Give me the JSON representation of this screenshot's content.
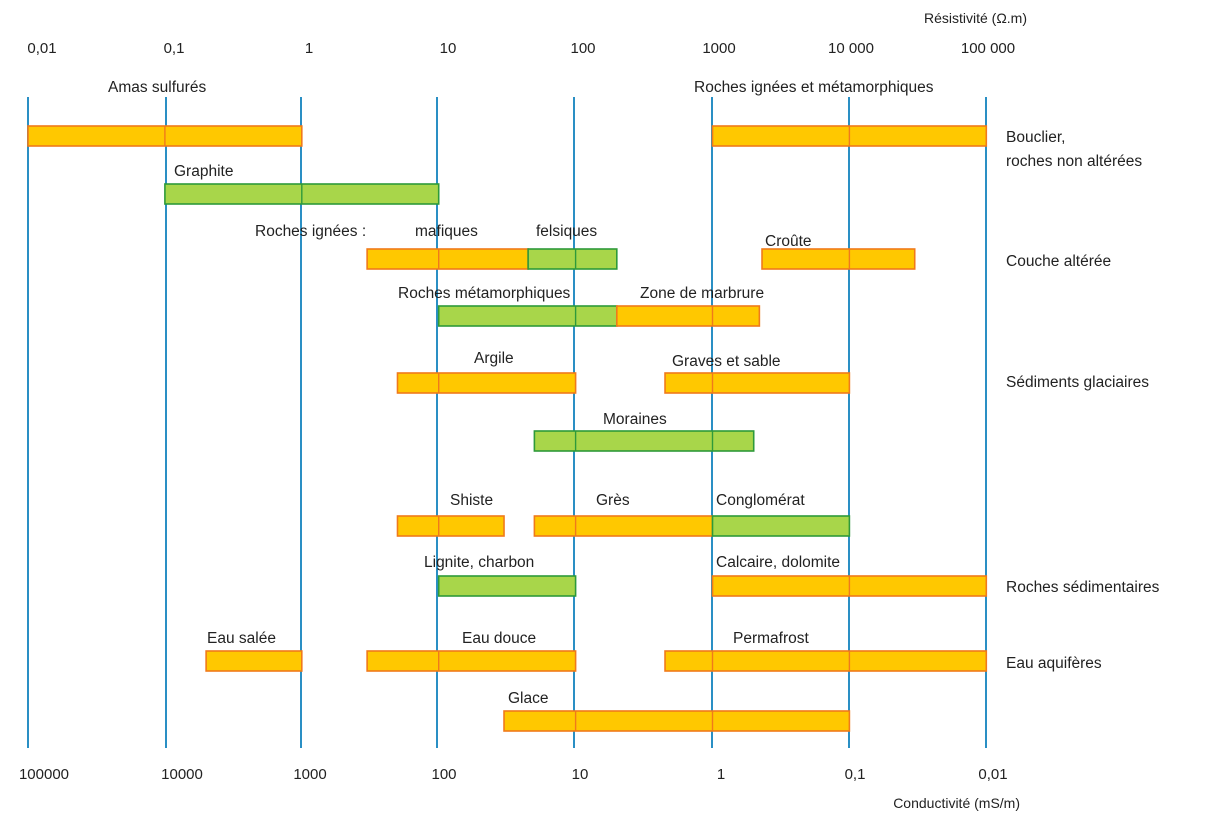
{
  "chart_data": {
    "type": "range-bar",
    "resistivity_axis": {
      "title": "Résistivité (Ω.m)",
      "ticks": [
        "0,01",
        "0,1",
        "1",
        "10",
        "100",
        "1000",
        "10 000",
        "100 000"
      ],
      "tick_values": [
        0.01,
        0.1,
        1,
        10,
        100,
        1000,
        10000,
        100000
      ]
    },
    "conductivity_axis": {
      "title": "Conductivité (mS/m)",
      "ticks": [
        "100000",
        "10000",
        "1000",
        "100",
        "10",
        "1",
        "0,1",
        "0,01"
      ],
      "tick_values": [
        100000,
        10000,
        1000,
        100,
        10,
        1,
        0.1,
        0.01
      ]
    },
    "scale": "log",
    "grid": true,
    "colors": {
      "orange": "#ffc800",
      "green": "#a8d64a",
      "orange_border": "#f07a1a",
      "green_border": "#2e9a3a",
      "grid": "#2a8fc4"
    },
    "group_labels": [
      "Bouclier,",
      "roches non altérées",
      "Couche altérée",
      "Sédiments glaciaires",
      "Roches sédimentaires",
      "Eau aquifères"
    ],
    "labels": [
      "Amas sulfurés",
      "Roches ignées et métamorphiques",
      "Graphite",
      "Roches ignées :",
      "mafiques",
      "felsiques",
      "Croûte",
      "Roches métamorphiques",
      "Zone de marbrure",
      "Argile",
      "Graves et sable",
      "Moraines",
      "Shiste",
      "Grès",
      "Conglomérat",
      "Lignite, charbon",
      "Calcaire, dolomite",
      "Eau salée",
      "Eau douce",
      "Permafrost",
      "Glace"
    ],
    "bars": [
      {
        "label": "Amas sulfurés",
        "resistivity_min": 0.01,
        "resistivity_max": 1,
        "color": "orange"
      },
      {
        "label": "Roches ignées et métamorphiques",
        "resistivity_min": 1000,
        "resistivity_max": 100000,
        "color": "orange"
      },
      {
        "label": "Graphite",
        "resistivity_min": 0.1,
        "resistivity_max": 10,
        "color": "green"
      },
      {
        "label": "mafiques",
        "resistivity_min": 3,
        "resistivity_max": 45,
        "color": "orange"
      },
      {
        "label": "felsiques",
        "resistivity_min": 45,
        "resistivity_max": 200,
        "color": "green"
      },
      {
        "label": "Croûte",
        "resistivity_min": 2300,
        "resistivity_max": 30000,
        "color": "orange"
      },
      {
        "label": "Roches métamorphiques",
        "resistivity_min": 10,
        "resistivity_max": 200,
        "color": "green"
      },
      {
        "label": "Zone de marbrure",
        "resistivity_min": 200,
        "resistivity_max": 2200,
        "color": "orange"
      },
      {
        "label": "Argile",
        "resistivity_min": 5,
        "resistivity_max": 100,
        "color": "orange"
      },
      {
        "label": "Graves et sable",
        "resistivity_min": 450,
        "resistivity_max": 10000,
        "color": "orange"
      },
      {
        "label": "Moraines",
        "resistivity_min": 50,
        "resistivity_max": 2000,
        "color": "green"
      },
      {
        "label": "Shiste",
        "resistivity_min": 5,
        "resistivity_max": 30,
        "color": "orange"
      },
      {
        "label": "Grès",
        "resistivity_min": 50,
        "resistivity_max": 1000,
        "color": "orange"
      },
      {
        "label": "Conglomérat",
        "resistivity_min": 1000,
        "resistivity_max": 10000,
        "color": "green"
      },
      {
        "label": "Lignite, charbon",
        "resistivity_min": 10,
        "resistivity_max": 100,
        "color": "green"
      },
      {
        "label": "Calcaire, dolomite",
        "resistivity_min": 1000,
        "resistivity_max": 100000,
        "color": "orange"
      },
      {
        "label": "Eau salée",
        "resistivity_min": 0.2,
        "resistivity_max": 1,
        "color": "orange"
      },
      {
        "label": "Eau douce",
        "resistivity_min": 3,
        "resistivity_max": 100,
        "color": "orange"
      },
      {
        "label": "Permafrost",
        "resistivity_min": 450,
        "resistivity_max": 100000,
        "color": "orange"
      },
      {
        "label": "Glace",
        "resistivity_min": 30,
        "resistivity_max": 10000,
        "color": "orange"
      }
    ]
  }
}
